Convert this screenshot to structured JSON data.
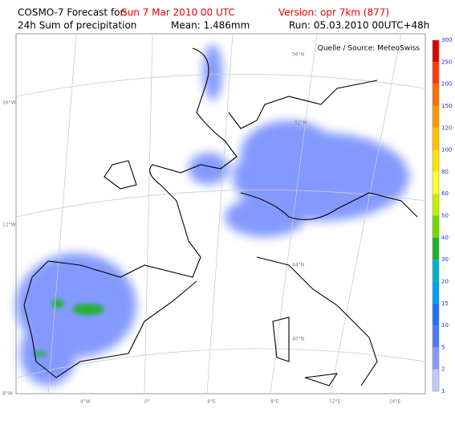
{
  "header": {
    "model": "COSMO-7 Forecast for:",
    "valid": "Sun 7 Mar 2010 00 UTC",
    "version": "Version: opr 7km (877)",
    "field": "24h Sum of precipitation",
    "mean": "Mean: 1.486mm",
    "run": "Run: 05.03.2010 00UTC+48h"
  },
  "source": "Quelle / Source: MeteoSwiss",
  "legend": {
    "labels": [
      "300",
      "250",
      "200",
      "150",
      "120",
      "100",
      "80",
      "60",
      "50",
      "40",
      "30",
      "20",
      "15",
      "10",
      "5",
      "2",
      "1"
    ],
    "colors": [
      "#e00000",
      "#ff3c00",
      "#ff6e00",
      "#ff9a00",
      "#ffc000",
      "#ffe000",
      "#ffff30",
      "#c0f000",
      "#70d800",
      "#20b030",
      "#00b4c8",
      "#00a0ff",
      "#2070ff",
      "#4f78ff",
      "#8898ff",
      "#c0c8ff"
    ]
  },
  "map_labels": {
    "left": [
      "16°W",
      "12°W",
      "8°W"
    ],
    "bottom": [
      "4°W",
      "0°",
      "4°E",
      "8°E",
      "12°E",
      "16°E"
    ],
    "inner": [
      "56°N",
      "52°N",
      "44°N",
      "40°N"
    ]
  }
}
